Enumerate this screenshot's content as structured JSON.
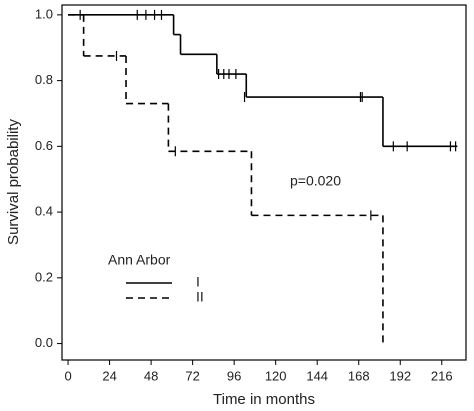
{
  "chart_data": {
    "type": "step",
    "x_label": "Time in months",
    "y_label": "Survival probability",
    "annotation": "p=0.020",
    "legend_title": "Ann Arbor",
    "xlim": [
      -3.5,
      230
    ],
    "ylim": [
      -0.05,
      1.03
    ],
    "xticks": [
      0,
      24,
      48,
      72,
      96,
      120,
      144,
      168,
      192,
      216
    ],
    "yticks": [
      {
        "value": 0,
        "label": "0.0"
      },
      0.2,
      0.4,
      0.6,
      0.8,
      {
        "value": 1,
        "label": "1.0"
      }
    ],
    "series": [
      {
        "name": "I",
        "color": "#000000",
        "dash": false,
        "x": [
          0,
          61,
          65,
          86,
          103,
          182,
          225
        ],
        "values": [
          1,
          0.94,
          0.88,
          0.82,
          0.75,
          0.6,
          0.6
        ],
        "censor_x": [
          7,
          40,
          45,
          50,
          54,
          87,
          90,
          93,
          97,
          102,
          169,
          170,
          188,
          196,
          221,
          224
        ],
        "censor_values": [
          1,
          1,
          1,
          1,
          1,
          0.82,
          0.82,
          0.82,
          0.82,
          0.75,
          0.75,
          0.75,
          0.6,
          0.6,
          0.6,
          0.6
        ]
      },
      {
        "name": "II",
        "color": "#000000",
        "dash": true,
        "x": [
          0,
          9,
          33.5,
          58,
          106,
          182
        ],
        "values": [
          1,
          0.875,
          0.73,
          0.585,
          0.39,
          0
        ],
        "censor_x": [
          28,
          62,
          175
        ],
        "censor_values": [
          0.875,
          0.585,
          0.39
        ]
      }
    ]
  }
}
